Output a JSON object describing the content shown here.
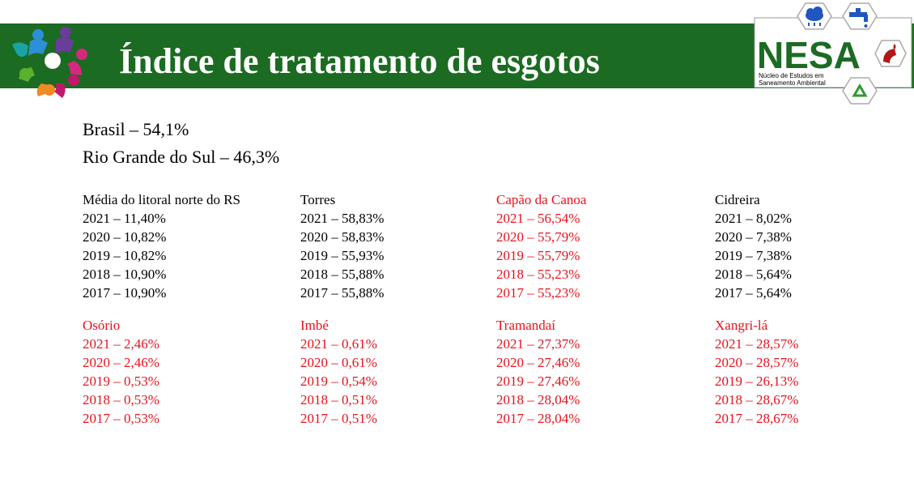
{
  "title": "Índice de tratamento de esgotos",
  "logo_right": {
    "name": "NESA",
    "subtitle_line1": "Núcleo de Estudos em",
    "subtitle_line2": "Saneamento Ambiental",
    "icons": [
      "rain-cloud-icon",
      "faucet-icon",
      "pipe-icon",
      "recycle-icon"
    ]
  },
  "summary": [
    "Brasil – 54,1%",
    "Rio Grande do Sul – 46,3%"
  ],
  "colors": {
    "banner": "#1c6b22",
    "highlight": "#e8131b",
    "text": "#000000"
  },
  "groups": [
    {
      "name": "Média do litoral norte do RS",
      "highlight": false,
      "rows": [
        "2021 – 11,40%",
        "2020 – 10,82%",
        "2019 – 10,82%",
        "2018 – 10,90%",
        "2017 – 10,90%"
      ]
    },
    {
      "name": "Torres",
      "highlight": false,
      "rows": [
        "2021 – 58,83%",
        "2020 – 58,83%",
        "2019 – 55,93%",
        "2018 – 55,88%",
        "2017 – 55,88%"
      ]
    },
    {
      "name": "Capão da Canoa",
      "highlight": true,
      "rows": [
        "2021 – 56,54%",
        "2020 – 55,79%",
        "2019 – 55,79%",
        "2018 – 55,23%",
        "2017 – 55,23%"
      ]
    },
    {
      "name": "Cidreira",
      "highlight": false,
      "rows": [
        "2021 – 8,02%",
        "2020 – 7,38%",
        "2019 – 7,38%",
        "2018 – 5,64%",
        "2017 – 5,64%"
      ]
    },
    {
      "name": "Osório",
      "highlight": true,
      "rows": [
        "2021 – 2,46%",
        "2020 – 2,46%",
        "2019 – 0,53%",
        "2018 – 0,53%",
        "2017 – 0,53%"
      ]
    },
    {
      "name": "Imbé",
      "highlight": true,
      "rows": [
        "2021 – 0,61%",
        "2020 – 0,61%",
        "2019 – 0,54%",
        "2018 – 0,51%",
        "2017 – 0,51%"
      ]
    },
    {
      "name": "Tramandaí",
      "highlight": true,
      "rows": [
        "2021 – 27,37%",
        "2020 – 27,46%",
        "2019 – 27,46%",
        "2018 – 28,04%",
        "2017 – 28,04%"
      ]
    },
    {
      "name": "Xangri-lá",
      "highlight": true,
      "rows": [
        "2021 – 28,57%",
        "2020 – 28,57%",
        "2019 – 26,13%",
        "2018 – 28,67%",
        "2017 – 28,67%"
      ]
    }
  ]
}
